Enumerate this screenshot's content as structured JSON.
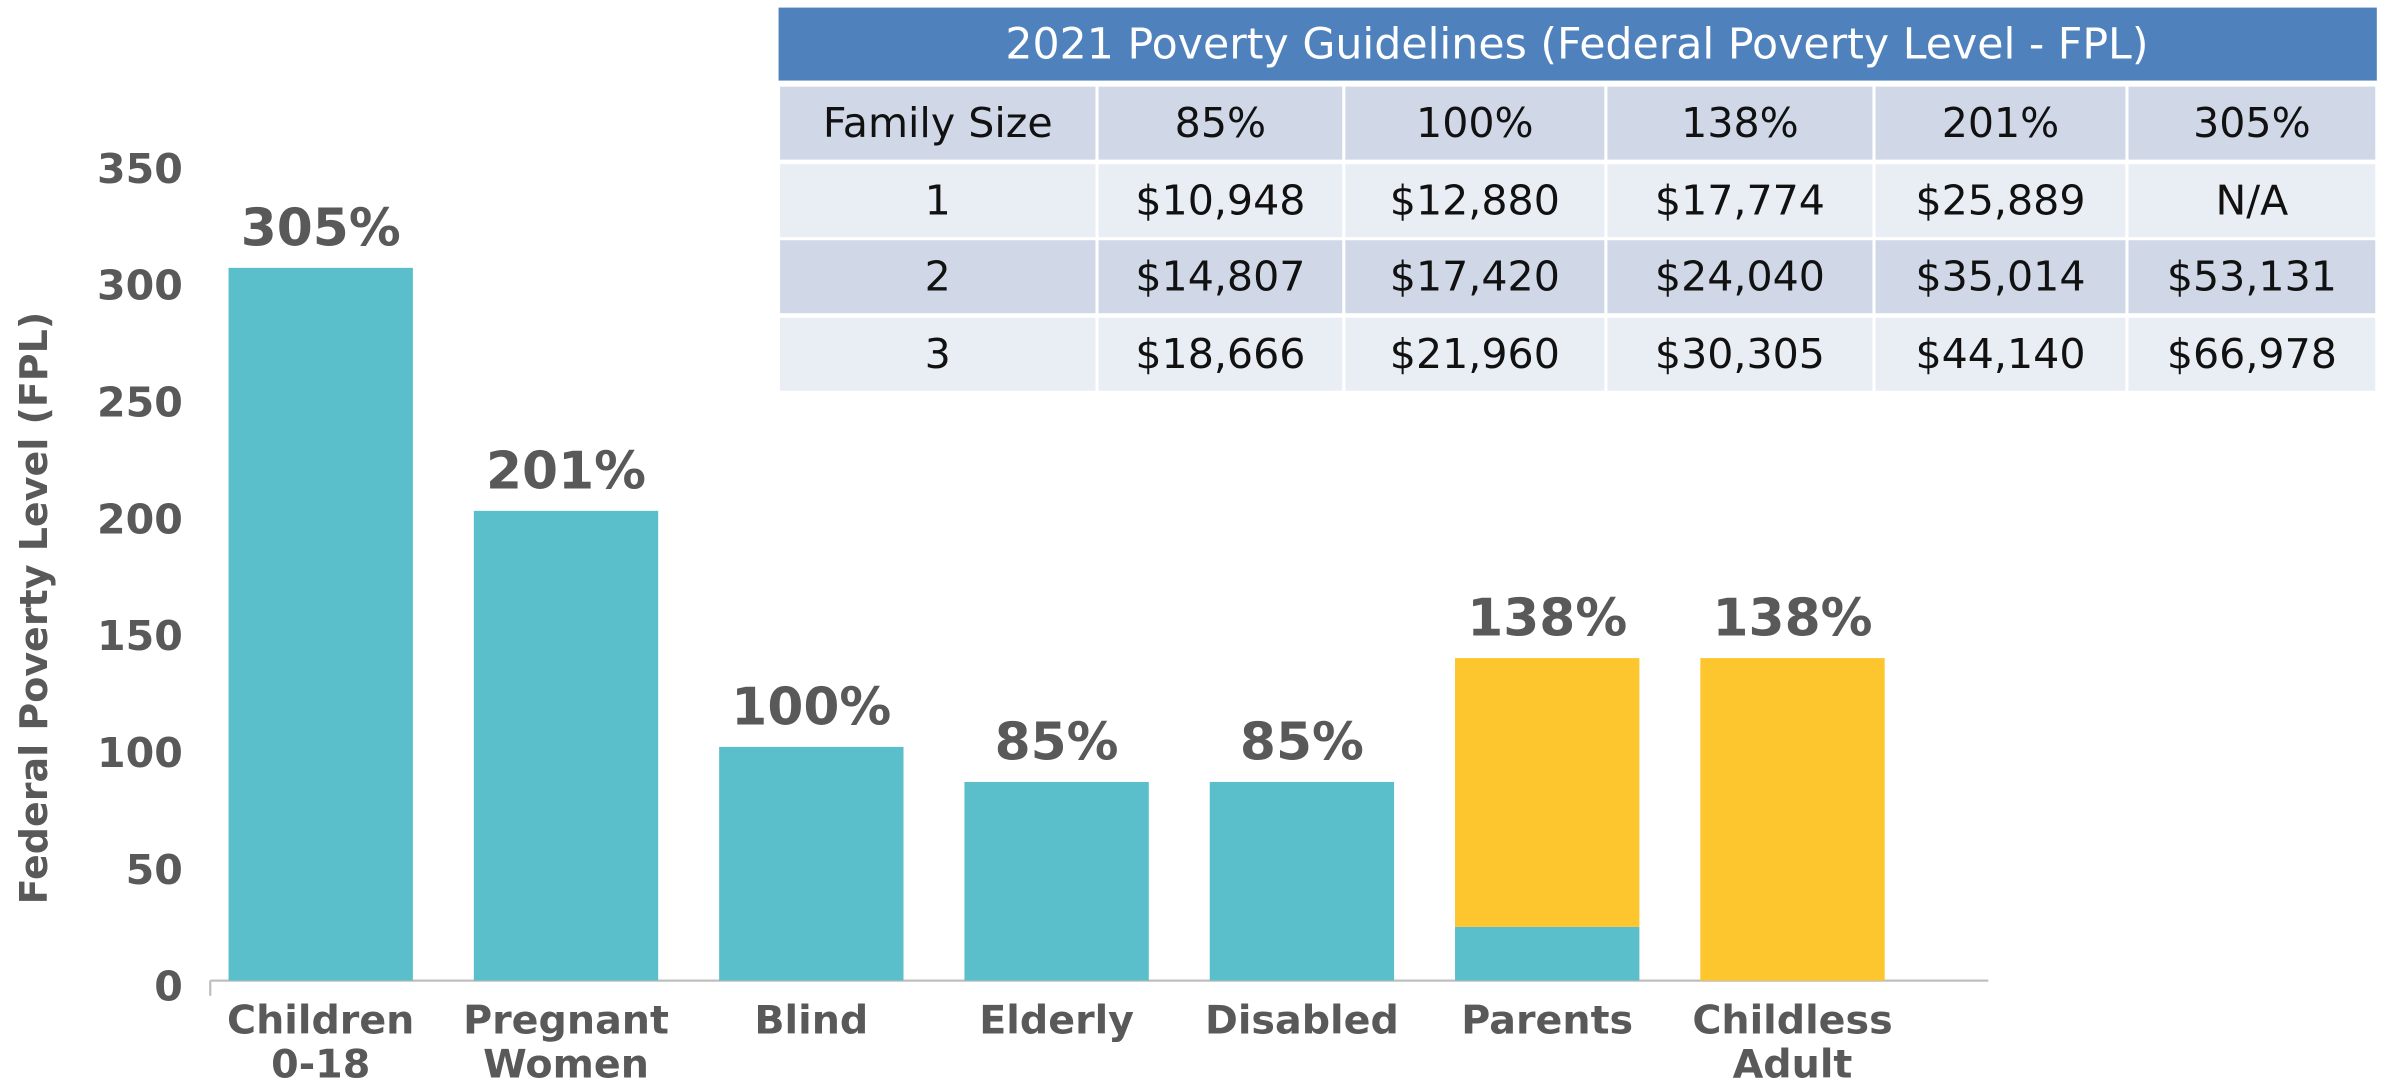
{
  "chart_data": {
    "type": "bar",
    "stacked": true,
    "y_label": "Federal Poverty Level (FPL)",
    "categories": [
      [
        "Children",
        "0-18"
      ],
      [
        "Pregnant",
        "Women"
      ],
      [
        "Blind"
      ],
      [
        "Elderly"
      ],
      [
        "Disabled"
      ],
      [
        "Parents"
      ],
      [
        "Childless",
        "Adult"
      ]
    ],
    "series": [
      {
        "color": "#5bbfcb",
        "values": [
          305,
          201,
          100,
          85,
          85,
          23,
          null
        ]
      },
      {
        "color": "#fdc52e",
        "values": [
          null,
          null,
          null,
          null,
          null,
          115,
          138
        ]
      }
    ],
    "value_labels": [
      "305%",
      "201%",
      "100%",
      "85%",
      "85%",
      "138%",
      "138%"
    ],
    "ylim": [
      0,
      350
    ],
    "yticks": [
      0,
      50,
      100,
      150,
      200,
      250,
      300,
      350
    ],
    "grid": false
  },
  "table": {
    "title": "2021 Poverty Guidelines (Federal Poverty Level - FPL)",
    "header": [
      "Family Size",
      "85%",
      "100%",
      "138%",
      "201%",
      "305%"
    ],
    "rows": [
      [
        "1",
        "$10,948",
        "$12,880",
        "$17,774",
        "$25,889",
        "N/A"
      ],
      [
        "2",
        "$14,807",
        "$17,420",
        "$24,040",
        "$35,014",
        "$53,131"
      ],
      [
        "3",
        "$18,666",
        "$21,960",
        "$30,305",
        "$44,140",
        "$66,978"
      ]
    ]
  }
}
